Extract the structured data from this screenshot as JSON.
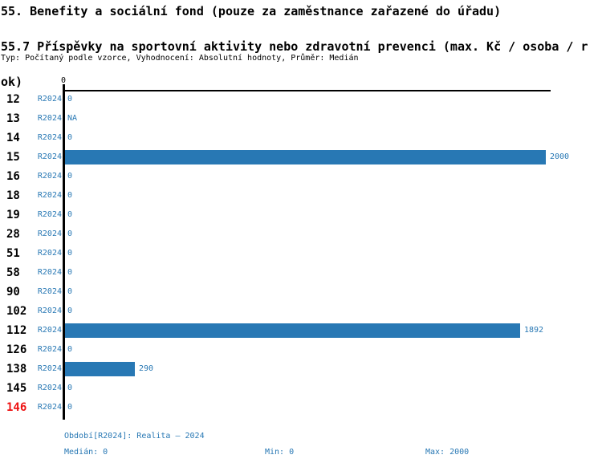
{
  "header": {
    "title_line1": "55. Benefity a sociální fond (pouze za zaměstnance zařazené do úřadu)",
    "title_line2": "55.7 Příspěvky na sportovní aktivity nebo zdravotní prevenci (max. Kč / osoba / r",
    "title_line3": "ok)",
    "meta_line": "Typ: Počítaný podle vzorce, Vyhodnocení: Absolutní hodnoty, Průměr: Medián"
  },
  "chart_data": {
    "type": "bar",
    "orientation": "horizontal",
    "title": "55.7 Příspěvky na sportovní aktivity nebo zdravotní prevenci (max. Kč / osoba / rok)",
    "period_label": "R2024",
    "axis_tick_label": "0",
    "categories": [
      "12",
      "13",
      "14",
      "15",
      "16",
      "18",
      "19",
      "28",
      "51",
      "58",
      "90",
      "102",
      "112",
      "126",
      "138",
      "145",
      "146"
    ],
    "values": [
      0,
      null,
      0,
      2000,
      0,
      0,
      0,
      0,
      0,
      0,
      0,
      0,
      1892,
      0,
      290,
      0,
      0
    ],
    "value_labels": [
      "0",
      "NA",
      "0",
      "2000",
      "0",
      "0",
      "0",
      "0",
      "0",
      "0",
      "0",
      "0",
      "1892",
      "0",
      "290",
      "0",
      "0"
    ],
    "xlim": [
      0,
      2000
    ],
    "grid": false,
    "legend": false,
    "highlighted_category": "146",
    "stats": {
      "median": 0,
      "min": 0,
      "max": 2000
    }
  },
  "footer": {
    "period_text": "Období[R2024]: Realita – 2024",
    "median_label": "Medián: 0",
    "min_label": "Min: 0",
    "max_label": "Max: 2000"
  },
  "colors": {
    "accent_blue": "#2878b4",
    "highlight_red": "#ee1111",
    "axis_black": "#000000",
    "background": "#ffffff"
  }
}
